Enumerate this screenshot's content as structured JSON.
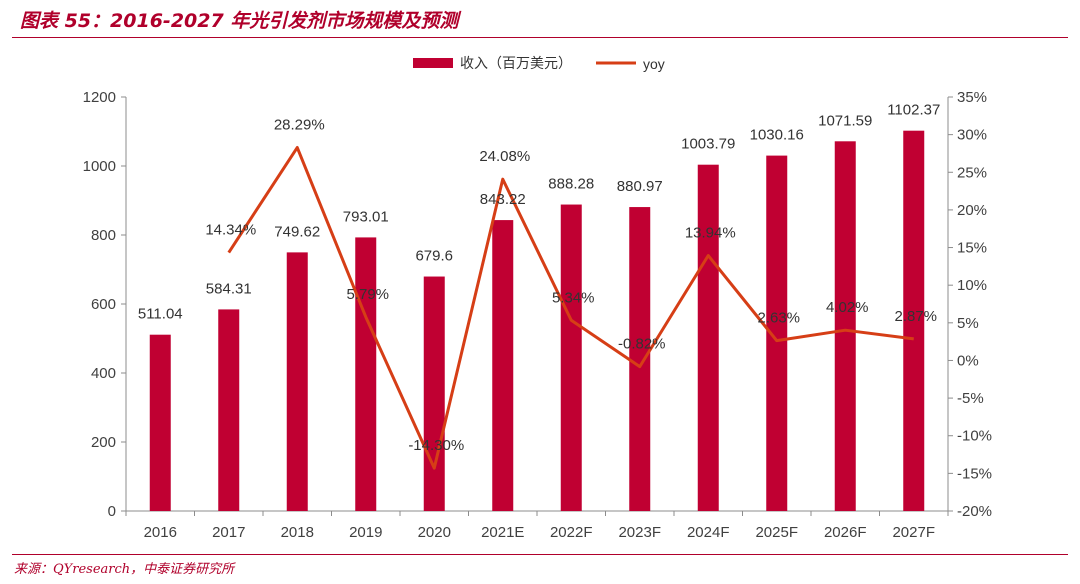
{
  "header": {
    "title": "图表 55：2016-2027 年光引发剂市场规模及预测"
  },
  "footer": {
    "source": "来源：QYresearch，中泰证券研究所"
  },
  "colors": {
    "bar": "#c00032",
    "line": "#d63e16",
    "accent": "#b0002b"
  },
  "chart_data": {
    "type": "bar",
    "title": "2016-2027 年光引发剂市场规模及预测",
    "categories": [
      "2016",
      "2017",
      "2018",
      "2019",
      "2020",
      "2021E",
      "2022F",
      "2023F",
      "2024F",
      "2025F",
      "2026F",
      "2027F"
    ],
    "series": [
      {
        "name": "收入（百万美元）",
        "type": "bar",
        "axis": "left",
        "values": [
          511.04,
          584.31,
          749.62,
          793.01,
          679.6,
          843.22,
          888.28,
          880.97,
          1003.79,
          1030.16,
          1071.59,
          1102.37
        ],
        "labels": [
          "511.04",
          "584.31",
          "749.62",
          "793.01",
          "679.6",
          "843.22",
          "888.28",
          "880.97",
          "1003.79",
          "1030.16",
          "1071.59",
          "1102.37"
        ]
      },
      {
        "name": "yoy",
        "type": "line",
        "axis": "right",
        "values": [
          null,
          14.34,
          28.29,
          5.79,
          -14.3,
          24.08,
          5.34,
          -0.82,
          13.94,
          2.63,
          4.02,
          2.87
        ],
        "labels": [
          "",
          "14.34%",
          "28.29%",
          "5.79%",
          "-14.30%",
          "24.08%",
          "5.34%",
          "-0.82%",
          "13.94%",
          "2.63%",
          "4.02%",
          "2.87%"
        ]
      }
    ],
    "ylim_left": [
      0,
      1200
    ],
    "yticks_left": [
      0,
      200,
      400,
      600,
      800,
      1000,
      1200
    ],
    "ylim_right": [
      -20,
      35
    ],
    "yticks_right": [
      -20,
      -15,
      -10,
      -5,
      0,
      5,
      10,
      15,
      20,
      25,
      30,
      35
    ],
    "yticks_right_labels": [
      "-20%",
      "-15%",
      "-10%",
      "-5%",
      "0%",
      "5%",
      "10%",
      "15%",
      "20%",
      "25%",
      "30%",
      "35%"
    ],
    "legend": [
      "收入（百万美元）",
      "yoy"
    ],
    "legend_position": "top-center",
    "grid": false,
    "xlabel": "",
    "ylabel": ""
  }
}
